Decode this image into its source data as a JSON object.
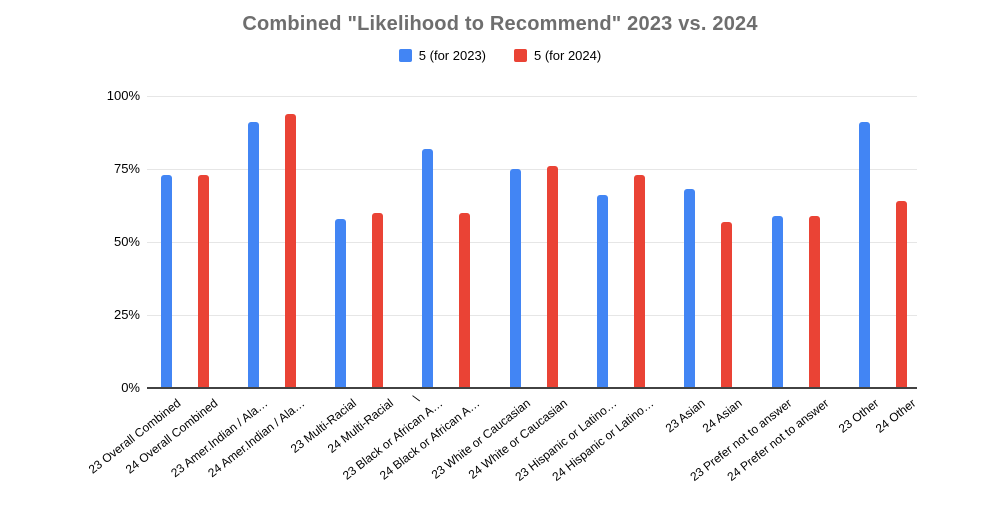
{
  "chart_data": {
    "type": "bar",
    "title": "Combined \"Likelihood to Recommend\" 2023 vs. 2024",
    "xlabel": "",
    "ylabel": "",
    "ylim": [
      0,
      100
    ],
    "ytick_labels": [
      "0%",
      "25%",
      "50%",
      "75%",
      "100%"
    ],
    "yticks": [
      0,
      25,
      50,
      75,
      100
    ],
    "grid": "horizontal",
    "legend_position": "top",
    "legend": [
      {
        "label": "5 (for 2023)",
        "color": "#4285F4"
      },
      {
        "label": "5 (for 2024)",
        "color": "#EA4335"
      }
    ],
    "stray_axis_glyph": "\\",
    "bars": [
      {
        "label": "23 Overall Combined",
        "value": 73,
        "series": "5 (for 2023)"
      },
      {
        "label": "24 Overall Combined",
        "value": 73,
        "series": "5 (for 2024)"
      },
      {
        "label": "23 Amer.Indian / Ala…",
        "value": 91,
        "series": "5 (for 2023)"
      },
      {
        "label": "24 Amer.Indian / Ala…",
        "value": 94,
        "series": "5 (for 2024)"
      },
      {
        "label": "23 Multi-Racial",
        "value": 58,
        "series": "5 (for 2023)"
      },
      {
        "label": "24 Multi-Racial",
        "value": 60,
        "series": "5 (for 2024)"
      },
      {
        "label": "23 Black or African A…",
        "value": 82,
        "series": "5 (for 2023)"
      },
      {
        "label": "24 Black or African A…",
        "value": 60,
        "series": "5 (for 2024)"
      },
      {
        "label": "23 White or Caucasian",
        "value": 75,
        "series": "5 (for 2023)"
      },
      {
        "label": "24 White or Caucasian",
        "value": 76,
        "series": "5 (for 2024)"
      },
      {
        "label": "23 Hispanic or Latino…",
        "value": 66,
        "series": "5 (for 2023)"
      },
      {
        "label": "24 Hispanic or Latino…",
        "value": 73,
        "series": "5 (for 2024)"
      },
      {
        "label": "23 Asian",
        "value": 68,
        "series": "5 (for 2023)"
      },
      {
        "label": "24 Asian",
        "value": 57,
        "series": "5 (for 2024)"
      },
      {
        "label": "23 Prefer not to answer",
        "value": 59,
        "series": "5 (for 2023)"
      },
      {
        "label": "24 Prefer not to answer",
        "value": 59,
        "series": "5 (for 2024)"
      },
      {
        "label": "23 Other",
        "value": 91,
        "series": "5 (for 2023)"
      },
      {
        "label": "24 Other",
        "value": 64,
        "series": "5 (for 2024)"
      }
    ],
    "colors": {
      "series_2023": "#4285F4",
      "series_2024": "#EA4335",
      "title_text": "#6e6e6e",
      "axis_text": "#000000",
      "gridline": "#e6e6e6",
      "axis_line": "#424242"
    }
  }
}
